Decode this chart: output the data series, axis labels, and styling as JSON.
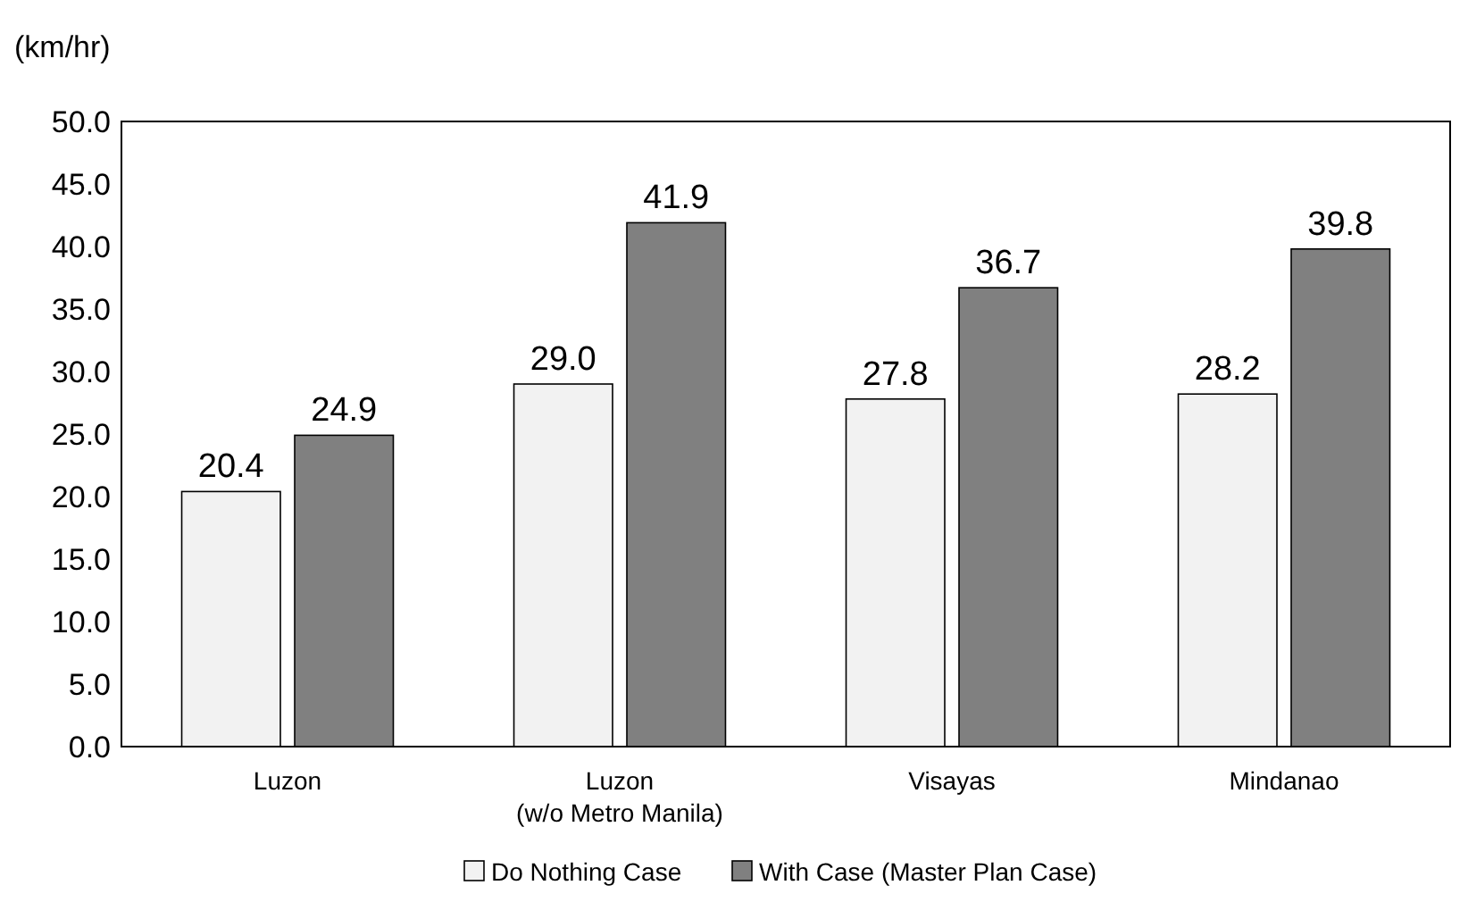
{
  "chart_data": {
    "type": "bar",
    "ylabel": "(km/hr)",
    "categories": [
      "Luzon",
      "Luzon\n(w/o Metro Manila)",
      "Visayas",
      "Mindanao"
    ],
    "series": [
      {
        "name": "Do Nothing Case",
        "color": "#f2f2f2",
        "values": [
          20.4,
          29.0,
          27.8,
          28.2
        ],
        "value_labels": [
          "20.4",
          "29.0",
          "27.8",
          "28.2"
        ]
      },
      {
        "name": "With Case (Master Plan Case)",
        "color": "#808080",
        "values": [
          24.9,
          41.9,
          36.7,
          39.8
        ],
        "value_labels": [
          "24.9",
          "41.9",
          "36.7",
          "39.8"
        ]
      }
    ],
    "ylim": [
      0,
      50
    ],
    "yticks": [
      {
        "value": 0,
        "label": "0.0"
      },
      {
        "value": 5,
        "label": "5.0"
      },
      {
        "value": 10,
        "label": "10.0"
      },
      {
        "value": 15,
        "label": "15.0"
      },
      {
        "value": 20,
        "label": "20.0"
      },
      {
        "value": 25,
        "label": "25.0"
      },
      {
        "value": 30,
        "label": "30.0"
      },
      {
        "value": 35,
        "label": "35.0"
      },
      {
        "value": 40,
        "label": "40.0"
      },
      {
        "value": 45,
        "label": "45.0"
      },
      {
        "value": 50,
        "label": "50.0"
      }
    ],
    "grid": false,
    "legend": "bottom"
  }
}
